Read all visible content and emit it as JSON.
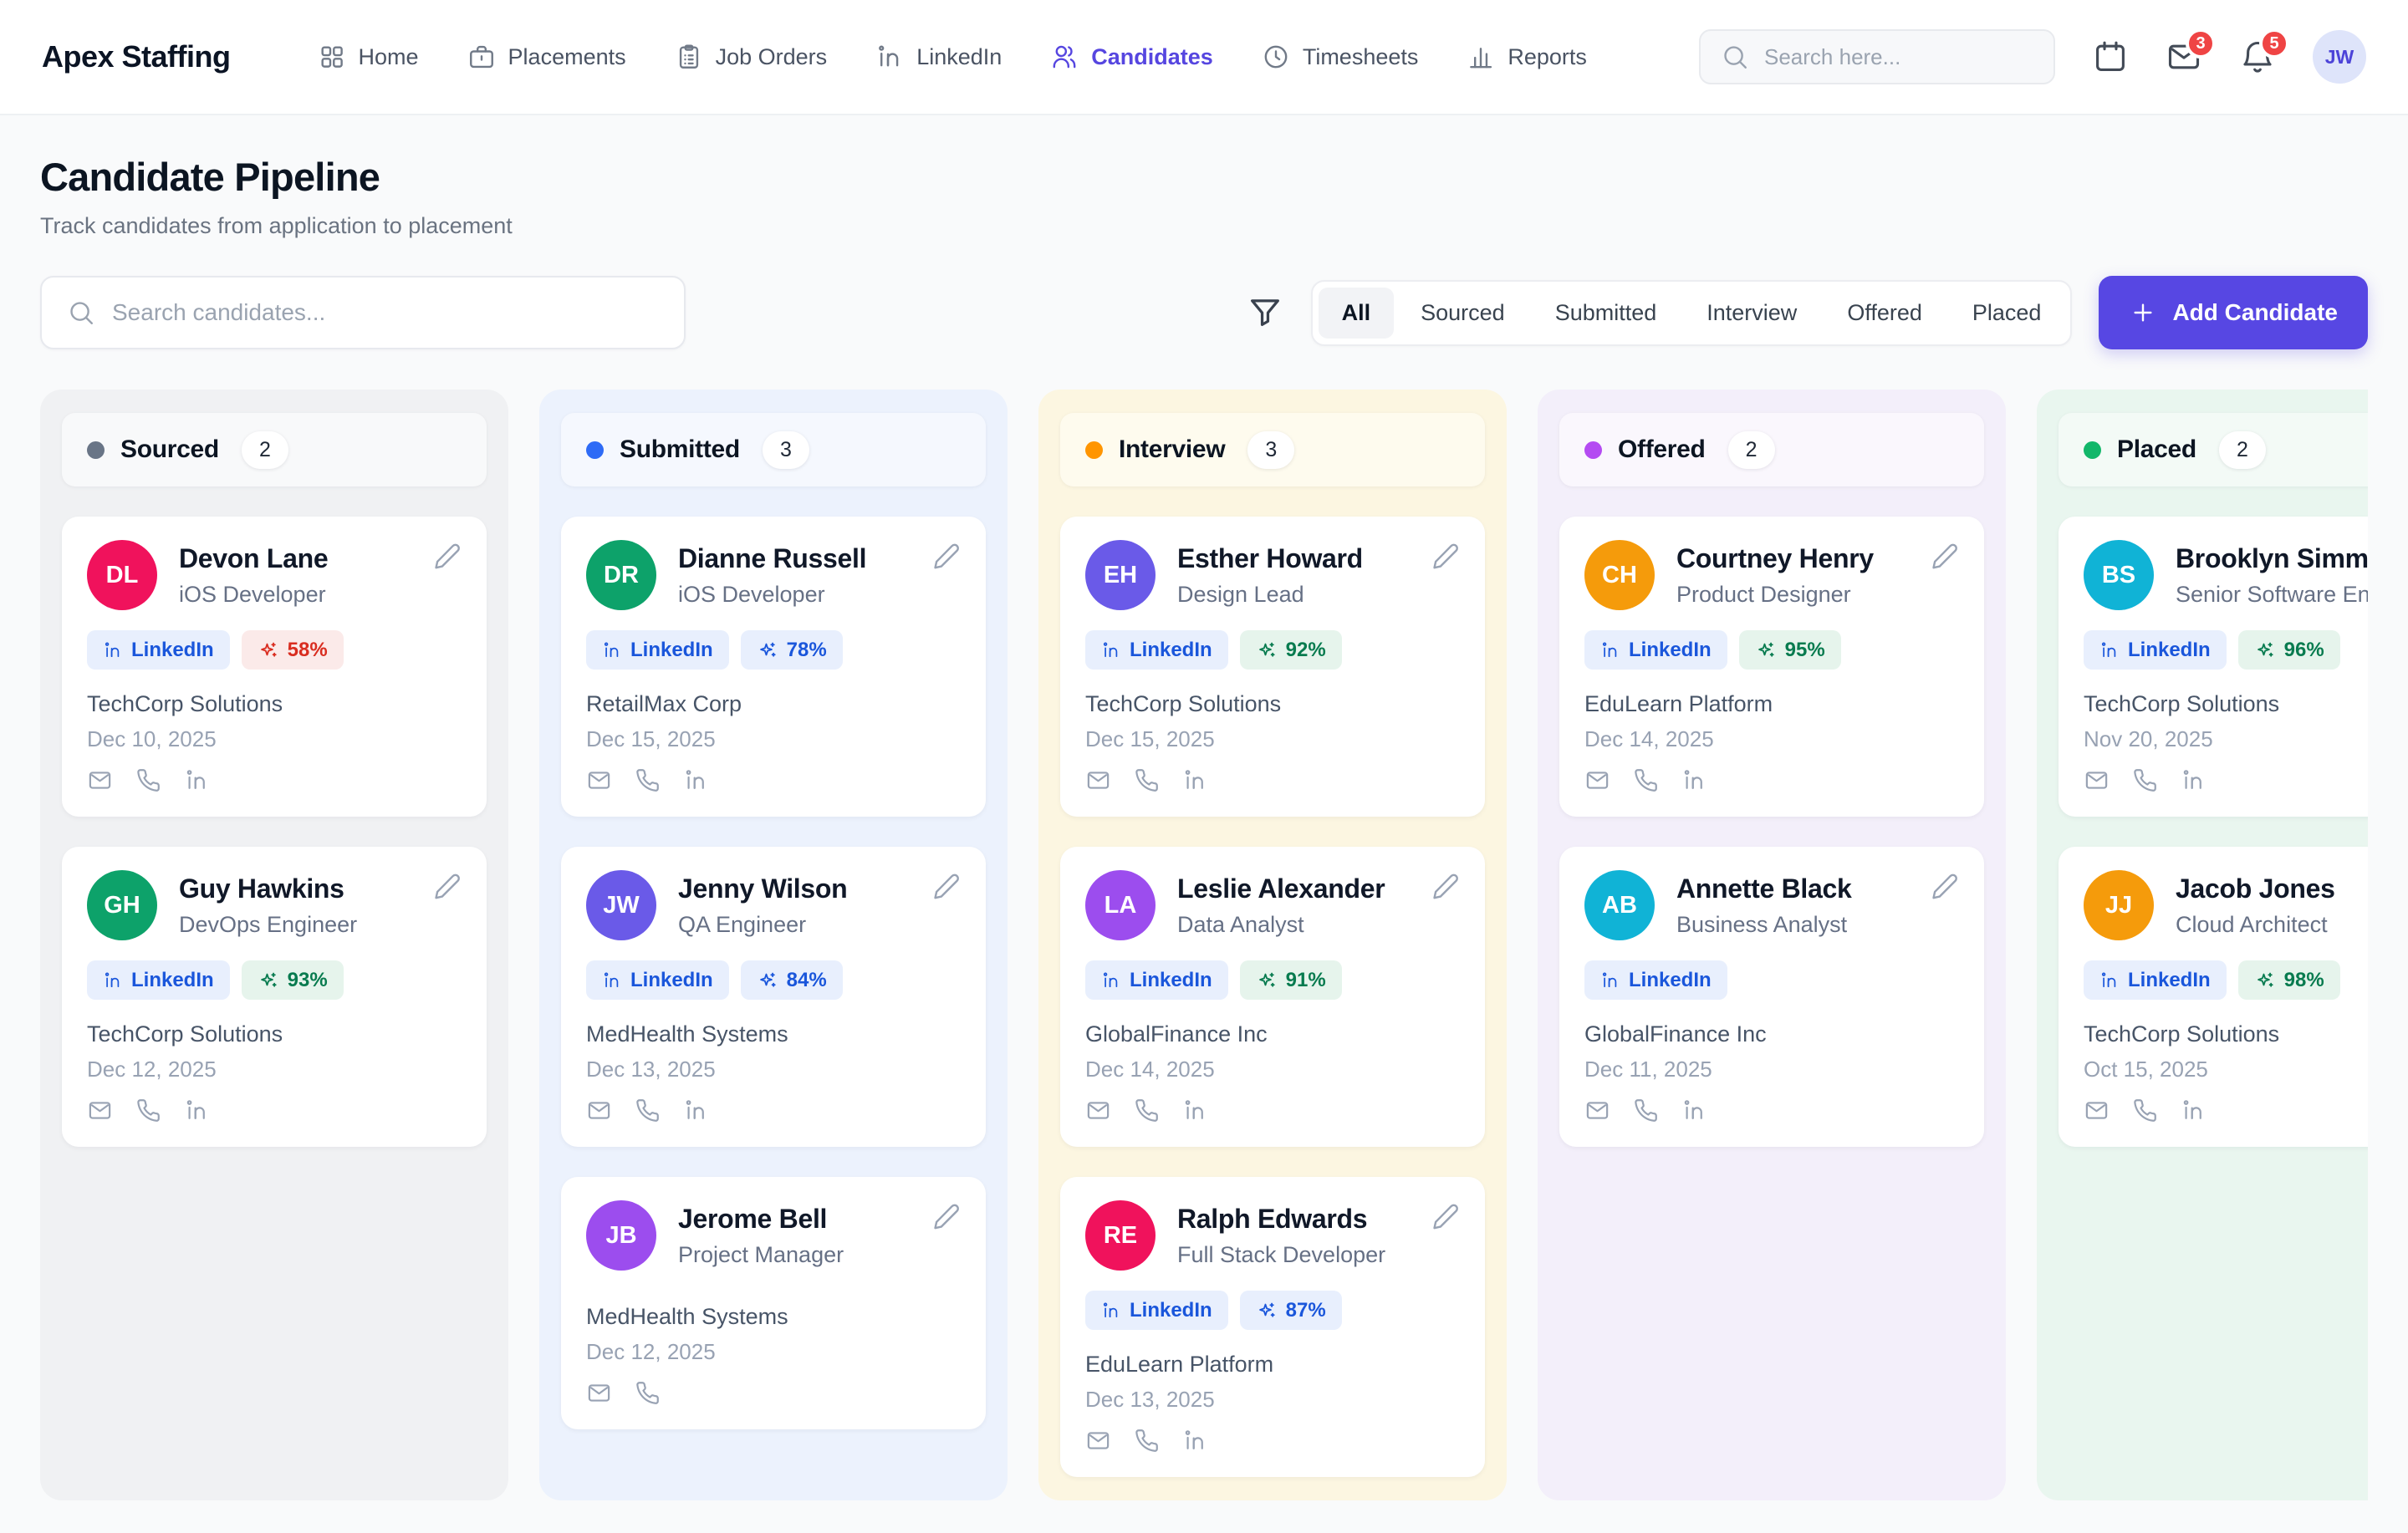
{
  "nav": {
    "brand": "Apex Staffing",
    "items": [
      {
        "id": "home",
        "label": "Home",
        "icon": "home-icon",
        "active": false
      },
      {
        "id": "placements",
        "label": "Placements",
        "icon": "briefcase-icon",
        "active": false
      },
      {
        "id": "job-orders",
        "label": "Job Orders",
        "icon": "clipboard-icon",
        "active": false
      },
      {
        "id": "linkedin",
        "label": "LinkedIn",
        "icon": "linkedin-icon",
        "active": false
      },
      {
        "id": "candidates",
        "label": "Candidates",
        "icon": "users-icon",
        "active": true
      },
      {
        "id": "timesheets",
        "label": "Timesheets",
        "icon": "clock-icon",
        "active": false
      },
      {
        "id": "reports",
        "label": "Reports",
        "icon": "chart-icon",
        "active": false
      }
    ],
    "search_placeholder": "Search here...",
    "icons": {
      "search": "search-icon",
      "calendar": "calendar-icon",
      "messages": "mail-icon",
      "notifications": "bell-icon"
    },
    "messages_badge": "3",
    "notifications_badge": "5",
    "avatar_initials": "JW"
  },
  "page": {
    "title": "Candidate Pipeline",
    "subtitle": "Track candidates from application to placement",
    "search_placeholder": "Search candidates...",
    "icons": {
      "search": "search-icon",
      "filter": "funnel-icon",
      "add": "plus-icon",
      "edit": "pencil-icon",
      "match": "sparkles-icon",
      "linkedin_badge": "linkedin-icon"
    },
    "filters": [
      "All",
      "Sourced",
      "Submitted",
      "Interview",
      "Offered",
      "Placed"
    ],
    "active_filter": "All",
    "add_candidate_label": "Add Candidate",
    "accent_color": "#5747E3"
  },
  "badge_tones": {
    "linkedin": {
      "bg": "#E8EFFD",
      "fg": "#1A56DB"
    },
    "red": {
      "bg": "#FBEAE9",
      "fg": "#D92D20"
    },
    "blue": {
      "bg": "#E8EFFD",
      "fg": "#1A56DB"
    },
    "green": {
      "bg": "#E6F4EC",
      "fg": "#087B4F"
    }
  },
  "board": {
    "linkedin_badge_label": "LinkedIn",
    "columns": [
      {
        "id": "sourced",
        "name": "Sourced",
        "count": "2",
        "dot_color": "#697586",
        "bg": "#F0F1F3",
        "header_bg": "#F8F9FA",
        "cards": [
          {
            "initials": "DL",
            "avatar_color": "#F0125C",
            "name": "Devon Lane",
            "role": "iOS Developer",
            "linkedin": true,
            "match": "58%",
            "match_tone": "red",
            "company": "TechCorp Solutions",
            "date": "Dec 10, 2025",
            "contacts": [
              "email",
              "phone",
              "linkedin"
            ]
          },
          {
            "initials": "GH",
            "avatar_color": "#0DA26A",
            "name": "Guy Hawkins",
            "role": "DevOps Engineer",
            "linkedin": true,
            "match": "93%",
            "match_tone": "green",
            "company": "TechCorp Solutions",
            "date": "Dec 12, 2025",
            "contacts": [
              "email",
              "phone",
              "linkedin"
            ]
          }
        ]
      },
      {
        "id": "submitted",
        "name": "Submitted",
        "count": "3",
        "dot_color": "#2E6BF6",
        "bg": "#ECF2FD",
        "header_bg": "#F5F8FE",
        "cards": [
          {
            "initials": "DR",
            "avatar_color": "#0DA26A",
            "name": "Dianne Russell",
            "role": "iOS Developer",
            "linkedin": true,
            "match": "78%",
            "match_tone": "blue",
            "company": "RetailMax Corp",
            "date": "Dec 15, 2025",
            "contacts": [
              "email",
              "phone",
              "linkedin"
            ]
          },
          {
            "initials": "JW",
            "avatar_color": "#6A5AE8",
            "name": "Jenny Wilson",
            "role": "QA Engineer",
            "linkedin": true,
            "match": "84%",
            "match_tone": "blue",
            "company": "MedHealth Systems",
            "date": "Dec 13, 2025",
            "contacts": [
              "email",
              "phone",
              "linkedin"
            ]
          },
          {
            "initials": "JB",
            "avatar_color": "#9C4DEE",
            "name": "Jerome Bell",
            "role": "Project Manager",
            "linkedin": false,
            "match": null,
            "match_tone": null,
            "company": "MedHealth Systems",
            "date": "Dec 12, 2025",
            "contacts": [
              "email",
              "phone"
            ]
          }
        ]
      },
      {
        "id": "interview",
        "name": "Interview",
        "count": "3",
        "dot_color": "#FF9500",
        "bg": "#FCF6E1",
        "header_bg": "#FEFBEE",
        "cards": [
          {
            "initials": "EH",
            "avatar_color": "#6A5AE8",
            "name": "Esther Howard",
            "role": "Design Lead",
            "linkedin": true,
            "match": "92%",
            "match_tone": "green",
            "company": "TechCorp Solutions",
            "date": "Dec 15, 2025",
            "contacts": [
              "email",
              "phone",
              "linkedin"
            ]
          },
          {
            "initials": "LA",
            "avatar_color": "#9C4DEE",
            "name": "Leslie Alexander",
            "role": "Data Analyst",
            "linkedin": true,
            "match": "91%",
            "match_tone": "green",
            "company": "GlobalFinance Inc",
            "date": "Dec 14, 2025",
            "contacts": [
              "email",
              "phone",
              "linkedin"
            ]
          },
          {
            "initials": "RE",
            "avatar_color": "#F0125C",
            "name": "Ralph Edwards",
            "role": "Full Stack Developer",
            "linkedin": true,
            "match": "87%",
            "match_tone": "blue",
            "company": "EduLearn Platform",
            "date": "Dec 13, 2025",
            "contacts": [
              "email",
              "phone",
              "linkedin"
            ]
          }
        ]
      },
      {
        "id": "offered",
        "name": "Offered",
        "count": "2",
        "dot_color": "#B44BF2",
        "bg": "#F3EFFA",
        "header_bg": "#FAF7FD",
        "cards": [
          {
            "initials": "CH",
            "avatar_color": "#F59B0B",
            "name": "Courtney Henry",
            "role": "Product Designer",
            "linkedin": true,
            "match": "95%",
            "match_tone": "green",
            "company": "EduLearn Platform",
            "date": "Dec 14, 2025",
            "contacts": [
              "email",
              "phone",
              "linkedin"
            ]
          },
          {
            "initials": "AB",
            "avatar_color": "#10B3D6",
            "name": "Annette Black",
            "role": "Business Analyst",
            "linkedin": true,
            "match": null,
            "match_tone": null,
            "company": "GlobalFinance Inc",
            "date": "Dec 11, 2025",
            "contacts": [
              "email",
              "phone",
              "linkedin"
            ]
          }
        ]
      },
      {
        "id": "placed",
        "name": "Placed",
        "count": "2",
        "dot_color": "#12B76A",
        "bg": "#E9F6EF",
        "header_bg": "#F3FAF6",
        "cards": [
          {
            "initials": "BS",
            "avatar_color": "#10B3D6",
            "name": "Brooklyn Simmons",
            "role": "Senior Software Engineer",
            "linkedin": true,
            "match": "96%",
            "match_tone": "green",
            "company": "TechCorp Solutions",
            "date": "Nov 20, 2025",
            "contacts": [
              "email",
              "phone",
              "linkedin"
            ]
          },
          {
            "initials": "JJ",
            "avatar_color": "#F59B0B",
            "name": "Jacob Jones",
            "role": "Cloud Architect",
            "linkedin": true,
            "match": "98%",
            "match_tone": "green",
            "company": "TechCorp Solutions",
            "date": "Oct 15, 2025",
            "contacts": [
              "email",
              "phone",
              "linkedin"
            ]
          }
        ]
      }
    ]
  }
}
